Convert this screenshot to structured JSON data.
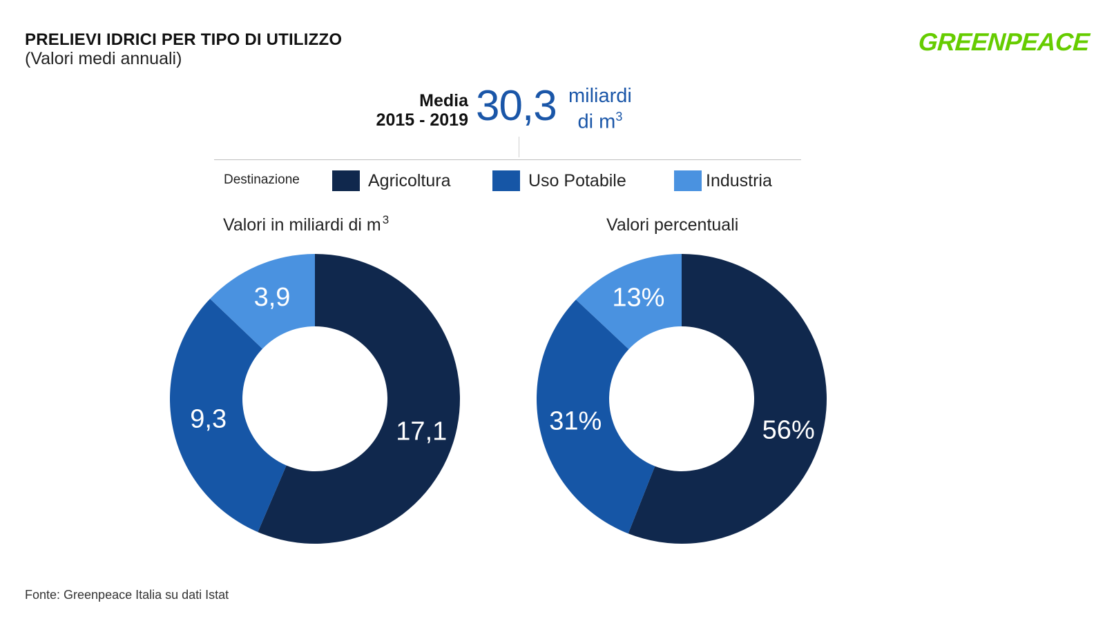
{
  "header": {
    "title": "PRELIEVI IDRICI PER TIPO DI UTILIZZO",
    "subtitle": "(Valori medi annuali)",
    "logo_text": "GREENPEACE"
  },
  "summary": {
    "label_line1": "Media",
    "label_line2": "2015 - 2019",
    "value": "30,3",
    "unit_line1": "miliardi",
    "unit_line2_base": "di m",
    "unit_line2_sup": "3"
  },
  "legend": {
    "title": "Destinazione",
    "items": [
      {
        "label": "Agricoltura",
        "color": "#10284d"
      },
      {
        "label": "Uso Potabile",
        "color": "#1656a6"
      },
      {
        "label": "Industria",
        "color": "#4a92e0"
      }
    ]
  },
  "chart_data": [
    {
      "type": "pie",
      "donut": true,
      "title": "Valori in miliardi di m",
      "title_sup": "3",
      "categories": [
        "Agricoltura",
        "Uso Potabile",
        "Industria"
      ],
      "values": [
        17.1,
        9.3,
        3.9
      ],
      "labels": [
        "17,1",
        "9,3",
        "3,9"
      ],
      "colors": [
        "#10284d",
        "#1656a6",
        "#4a92e0"
      ]
    },
    {
      "type": "pie",
      "donut": true,
      "title": "Valori percentuali",
      "categories": [
        "Agricoltura",
        "Uso Potabile",
        "Industria"
      ],
      "values": [
        56,
        31,
        13
      ],
      "labels": [
        "56%",
        "31%",
        "13%"
      ],
      "colors": [
        "#10284d",
        "#1656a6",
        "#4a92e0"
      ]
    }
  ],
  "footer": {
    "source": "Fonte: Greenpeace Italia su dati Istat"
  }
}
